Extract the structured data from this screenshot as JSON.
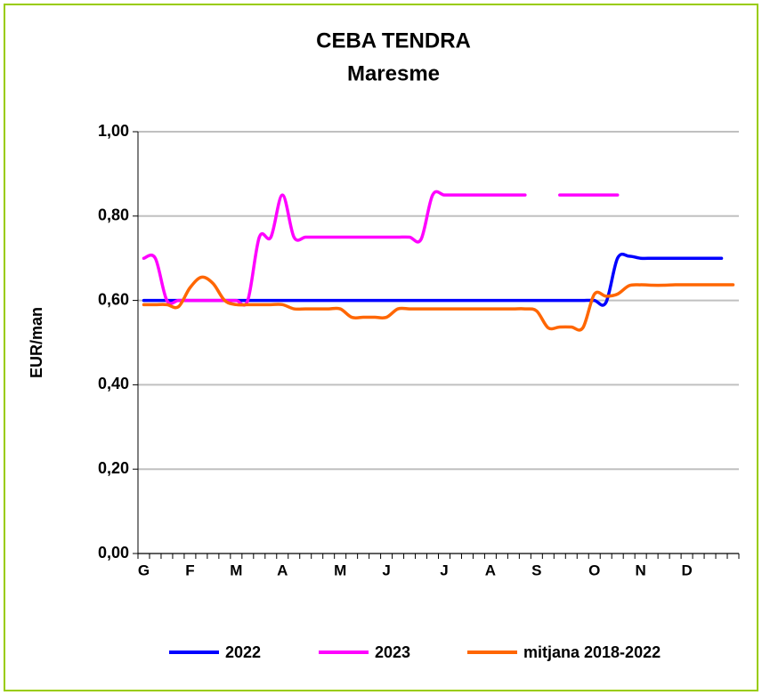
{
  "chart_data": {
    "type": "line",
    "title": "CEBA TENDRA",
    "subtitle": "Maresme",
    "y_label": "EUR/man",
    "categories": [
      "G",
      null,
      null,
      null,
      "F",
      null,
      null,
      null,
      "M",
      null,
      null,
      null,
      "A",
      null,
      null,
      null,
      null,
      "M",
      null,
      null,
      null,
      "J",
      null,
      null,
      null,
      null,
      "J",
      null,
      null,
      null,
      "A",
      null,
      null,
      null,
      "S",
      null,
      null,
      null,
      null,
      "O",
      null,
      null,
      null,
      "N",
      null,
      null,
      null,
      "D",
      null,
      null,
      null,
      null
    ],
    "series": [
      {
        "name": "2022",
        "color": "#0000ff",
        "values": [
          0.6,
          0.6,
          0.6,
          0.6,
          0.6,
          0.6,
          0.6,
          0.6,
          0.6,
          0.6,
          0.6,
          0.6,
          0.6,
          0.6,
          0.6,
          0.6,
          0.6,
          0.6,
          0.6,
          0.6,
          0.6,
          0.6,
          0.6,
          0.6,
          0.6,
          0.6,
          0.6,
          0.6,
          0.6,
          0.6,
          0.6,
          0.6,
          0.6,
          0.6,
          0.6,
          0.6,
          0.6,
          0.6,
          0.6,
          0.6,
          0.595,
          0.7,
          0.705,
          0.7,
          0.7,
          0.7,
          0.7,
          0.7,
          0.7,
          0.7,
          0.7,
          null
        ]
      },
      {
        "name": "2023",
        "color": "#ff00ff",
        "values": [
          0.7,
          0.7,
          0.6,
          0.6,
          0.6,
          0.6,
          0.6,
          0.6,
          0.6,
          0.6,
          0.75,
          0.75,
          0.85,
          0.75,
          0.75,
          0.75,
          0.75,
          0.75,
          0.75,
          0.75,
          0.75,
          0.75,
          0.75,
          0.75,
          0.745,
          0.85,
          0.85,
          0.85,
          0.85,
          0.85,
          0.85,
          0.85,
          0.85,
          0.85,
          null,
          null,
          0.85,
          0.85,
          0.85,
          0.85,
          0.85,
          0.85,
          null,
          null,
          null,
          null,
          null,
          null,
          null,
          null,
          null,
          null
        ]
      },
      {
        "name": "mitjana 2018-2022",
        "color": "#ff6600",
        "values": [
          0.59,
          0.59,
          0.59,
          0.585,
          0.63,
          0.655,
          0.64,
          0.6,
          0.59,
          0.59,
          0.59,
          0.59,
          0.59,
          0.58,
          0.58,
          0.58,
          0.58,
          0.58,
          0.56,
          0.56,
          0.56,
          0.56,
          0.58,
          0.58,
          0.58,
          0.58,
          0.58,
          0.58,
          0.58,
          0.58,
          0.58,
          0.58,
          0.58,
          0.58,
          0.575,
          0.535,
          0.537,
          0.537,
          0.535,
          0.615,
          0.61,
          0.615,
          0.635,
          0.637,
          0.636,
          0.636,
          0.637,
          0.637,
          0.637,
          0.637,
          0.637,
          0.637
        ]
      }
    ],
    "ylim": [
      0,
      1
    ],
    "yticks": [
      {
        "value": 0,
        "label": "0,00"
      },
      {
        "value": 0.2,
        "label": "0,20"
      },
      {
        "value": 0.4,
        "label": "0,40"
      },
      {
        "value": 0.6,
        "label": "0,60"
      },
      {
        "value": 0.8,
        "label": "0,80"
      },
      {
        "value": 1,
        "label": "1,00"
      }
    ],
    "grid": true,
    "legend": "bottom"
  }
}
